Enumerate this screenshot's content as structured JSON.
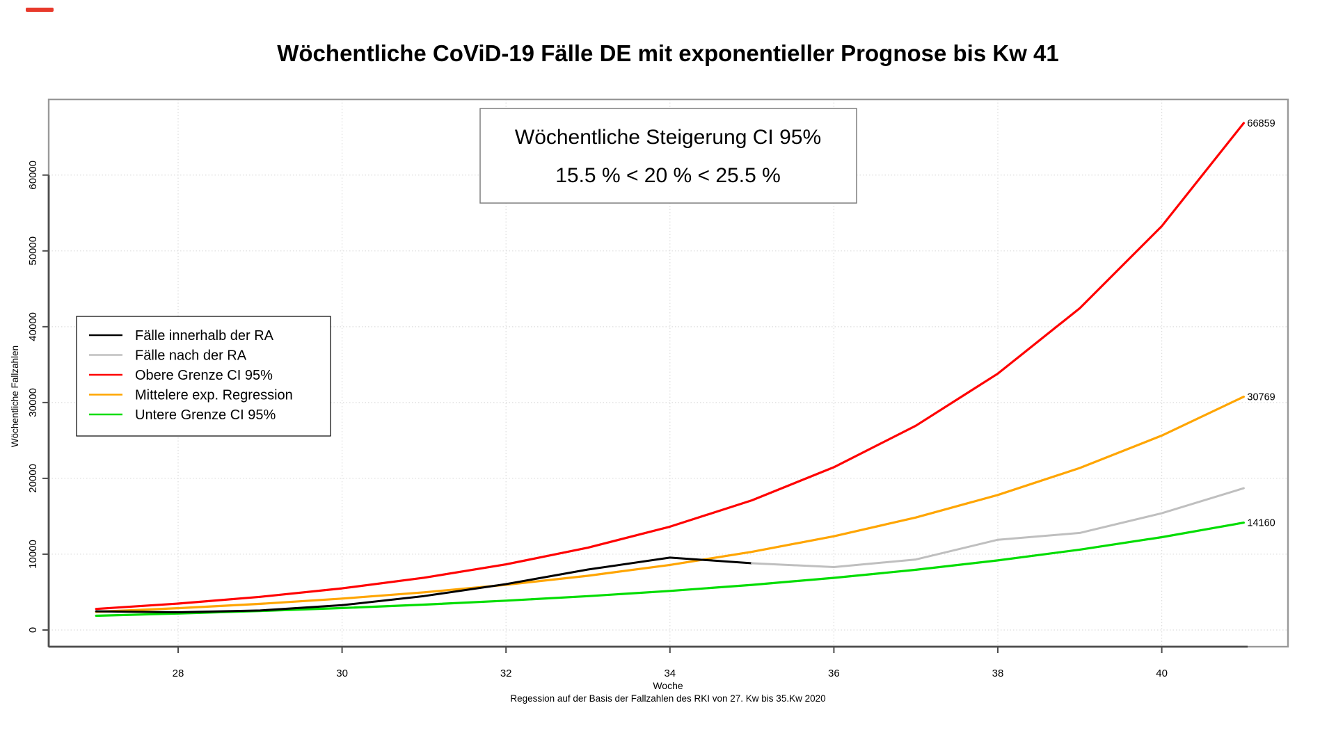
{
  "window": {
    "top_left_marker_color": "#e8392b"
  },
  "header": {
    "title": "Wöchentliche CoViD-19 Fälle DE mit exponentieller Prognose bis Kw 41"
  },
  "annotation_box": {
    "line1": "Wöchentliche Steigerung CI 95%",
    "line2": "15.5 % < 20 % < 25.5 %"
  },
  "legend": {
    "items": [
      {
        "label": "Fälle innerhalb der RA",
        "color": "#000000"
      },
      {
        "label": "Fälle nach der RA",
        "color": "#bfbfbf"
      },
      {
        "label": "Obere Grenze CI 95%",
        "color": "#ff0000"
      },
      {
        "label": "Mittelere exp. Regression",
        "color": "#ffa500"
      },
      {
        "label": "Untere Grenze CI  95%",
        "color": "#00dd00"
      }
    ]
  },
  "axes": {
    "x_label": "Woche",
    "x_sub_label": "Regession auf der Basis der Fallzahlen des RKI von 27. Kw bis 35.Kw 2020",
    "y_label": "Wöchentliche Fallzahlen",
    "x_ticks": [
      28,
      30,
      32,
      34,
      36,
      38,
      40
    ],
    "y_ticks": [
      0,
      10000,
      20000,
      30000,
      40000,
      50000,
      60000
    ]
  },
  "chart_data": {
    "type": "line",
    "title": "Wöchentliche CoViD-19 Fälle DE mit exponentieller Prognose bis Kw 41",
    "xlabel": "Woche",
    "ylabel": "Wöchentliche Fallzahlen",
    "xlim": [
      26.4,
      41.6
    ],
    "ylim": [
      0,
      70000
    ],
    "grid": "dotted light gray at every tick",
    "legend_position": "middle-left",
    "series": [
      {
        "name": "Obere Grenze CI 95%",
        "color": "#ff0000",
        "width": 3.2,
        "x": [
          27,
          28,
          29,
          30,
          31,
          32,
          33,
          34,
          35,
          36,
          37,
          38,
          39,
          40,
          41
        ],
        "values": [
          2780,
          3489,
          4379,
          5495,
          6897,
          8655,
          10862,
          13632,
          17108,
          21471,
          26946,
          33817,
          42440,
          53262,
          66859
        ]
      },
      {
        "name": "Mittelere exp. Regression",
        "color": "#ffa500",
        "width": 3.2,
        "x": [
          27,
          28,
          29,
          30,
          31,
          32,
          33,
          34,
          35,
          36,
          37,
          38,
          39,
          40,
          41
        ],
        "values": [
          2396,
          2876,
          3451,
          4141,
          4969,
          5963,
          7156,
          8587,
          10304,
          12365,
          14838,
          17806,
          21367,
          25641,
          30769
        ]
      },
      {
        "name": "Untere Grenze CI  95%",
        "color": "#00dd00",
        "width": 3.2,
        "x": [
          27,
          28,
          29,
          30,
          31,
          32,
          33,
          34,
          35,
          36,
          37,
          38,
          39,
          40,
          41
        ],
        "values": [
          1881,
          2172,
          2509,
          2898,
          3347,
          3866,
          4465,
          5157,
          5956,
          6880,
          7946,
          9177,
          10600,
          12243,
          14160
        ]
      },
      {
        "name": "Fälle innerhalb der RA",
        "color": "#000000",
        "width": 3,
        "x": [
          27,
          28,
          29,
          30,
          31,
          32,
          33,
          34,
          35
        ],
        "values": [
          2470,
          2340,
          2580,
          3270,
          4480,
          6050,
          7980,
          9550,
          8800
        ]
      },
      {
        "name": "Fälle nach der RA",
        "color": "#bfbfbf",
        "width": 3,
        "x": [
          35,
          36,
          37,
          38,
          39,
          40,
          41
        ],
        "values": [
          8800,
          8300,
          9300,
          11900,
          12800,
          15400,
          18700
        ]
      }
    ],
    "end_labels": [
      {
        "text": "66859",
        "value": 66859,
        "week": 41,
        "color": "#ff0000"
      },
      {
        "text": "30769",
        "value": 30769,
        "week": 41,
        "color": "#ffa500"
      },
      {
        "text": "14160",
        "value": 14160,
        "week": 41,
        "color": "#00dd00"
      }
    ]
  }
}
